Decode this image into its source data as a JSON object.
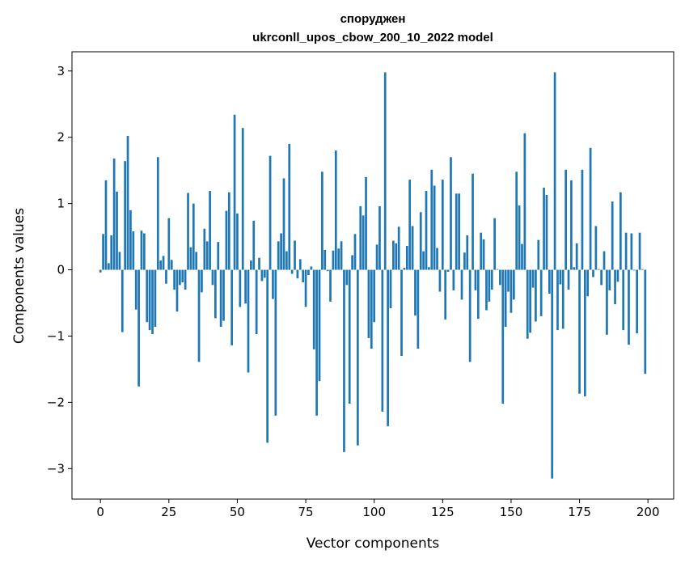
{
  "chart_data": {
    "type": "bar",
    "title": [
      "споруджен",
      "ukrconll_upos_cbow_200_10_2022 model"
    ],
    "xlabel": "Vector components",
    "ylabel": "Components values",
    "xlim": [
      -10.4,
      209.4
    ],
    "ylim": [
      -3.46,
      3.29
    ],
    "xticks": [
      0,
      25,
      50,
      75,
      100,
      125,
      150,
      175,
      200
    ],
    "yticks": [
      -3,
      -2,
      -1,
      0,
      1,
      2,
      3
    ],
    "ytick_labels": [
      "−3",
      "−2",
      "−1",
      "0",
      "1",
      "2",
      "3"
    ],
    "grid": false,
    "color": "#1f77b4",
    "values": [
      -0.04,
      0.54,
      1.35,
      0.1,
      0.52,
      1.68,
      1.18,
      0.27,
      -0.94,
      1.64,
      2.02,
      0.9,
      0.58,
      -0.6,
      -1.76,
      0.59,
      0.55,
      -0.79,
      -0.91,
      -0.97,
      -0.86,
      1.7,
      0.14,
      0.21,
      -0.21,
      0.78,
      0.15,
      -0.3,
      -0.63,
      -0.23,
      -0.19,
      -0.3,
      1.16,
      0.34,
      1.0,
      0.27,
      -1.39,
      -0.34,
      0.62,
      0.43,
      1.19,
      -0.23,
      -0.73,
      0.42,
      -0.86,
      -0.77,
      0.89,
      1.17,
      -1.14,
      2.34,
      0.85,
      -0.56,
      2.14,
      -0.51,
      -1.55,
      0.14,
      0.74,
      -0.97,
      0.18,
      -0.17,
      -0.12,
      -2.61,
      1.72,
      -0.44,
      -2.2,
      0.43,
      0.55,
      1.38,
      0.28,
      1.9,
      -0.06,
      0.44,
      -0.13,
      0.16,
      -0.19,
      -0.56,
      -0.08,
      0.05,
      -1.2,
      -2.2,
      -1.68,
      1.48,
      0.3,
      -0.02,
      -0.48,
      0.29,
      1.8,
      0.32,
      0.43,
      -2.75,
      -0.23,
      -2.02,
      0.22,
      0.54,
      -2.65,
      0.96,
      0.82,
      1.4,
      -1.03,
      -1.19,
      -0.79,
      0.38,
      0.96,
      -2.14,
      2.98,
      -2.36,
      -0.58,
      0.44,
      0.4,
      0.65,
      -1.3,
      0.03,
      0.36,
      1.36,
      0.66,
      -0.69,
      -1.19,
      0.87,
      0.28,
      1.19,
      0.04,
      1.51,
      1.27,
      0.33,
      -0.33,
      1.36,
      -0.75,
      -0.03,
      1.7,
      -0.31,
      1.15,
      1.15,
      -0.45,
      0.26,
      0.52,
      -1.39,
      1.45,
      -0.31,
      -0.74,
      0.56,
      0.46,
      -0.61,
      -0.48,
      -0.3,
      0.78,
      0.01,
      -0.23,
      -2.02,
      -0.86,
      -0.33,
      -0.65,
      -0.45,
      1.48,
      0.97,
      0.39,
      2.06,
      -1.04,
      -0.95,
      -0.27,
      -0.78,
      0.45,
      -0.7,
      1.24,
      1.13,
      -0.36,
      -3.15,
      2.98,
      -0.91,
      -0.22,
      -0.89,
      1.51,
      -0.3,
      1.35,
      0.04,
      0.4,
      -1.87,
      1.51,
      -1.91,
      -0.4,
      1.84,
      -0.11,
      0.66,
      0.01,
      -0.23,
      0.28,
      -0.98,
      -0.31,
      1.03,
      -0.52,
      -0.18,
      1.17,
      -0.91,
      0.56,
      -1.13,
      0.55,
      -0.01,
      -0.96,
      0.56,
      0.01,
      -1.57
    ]
  }
}
